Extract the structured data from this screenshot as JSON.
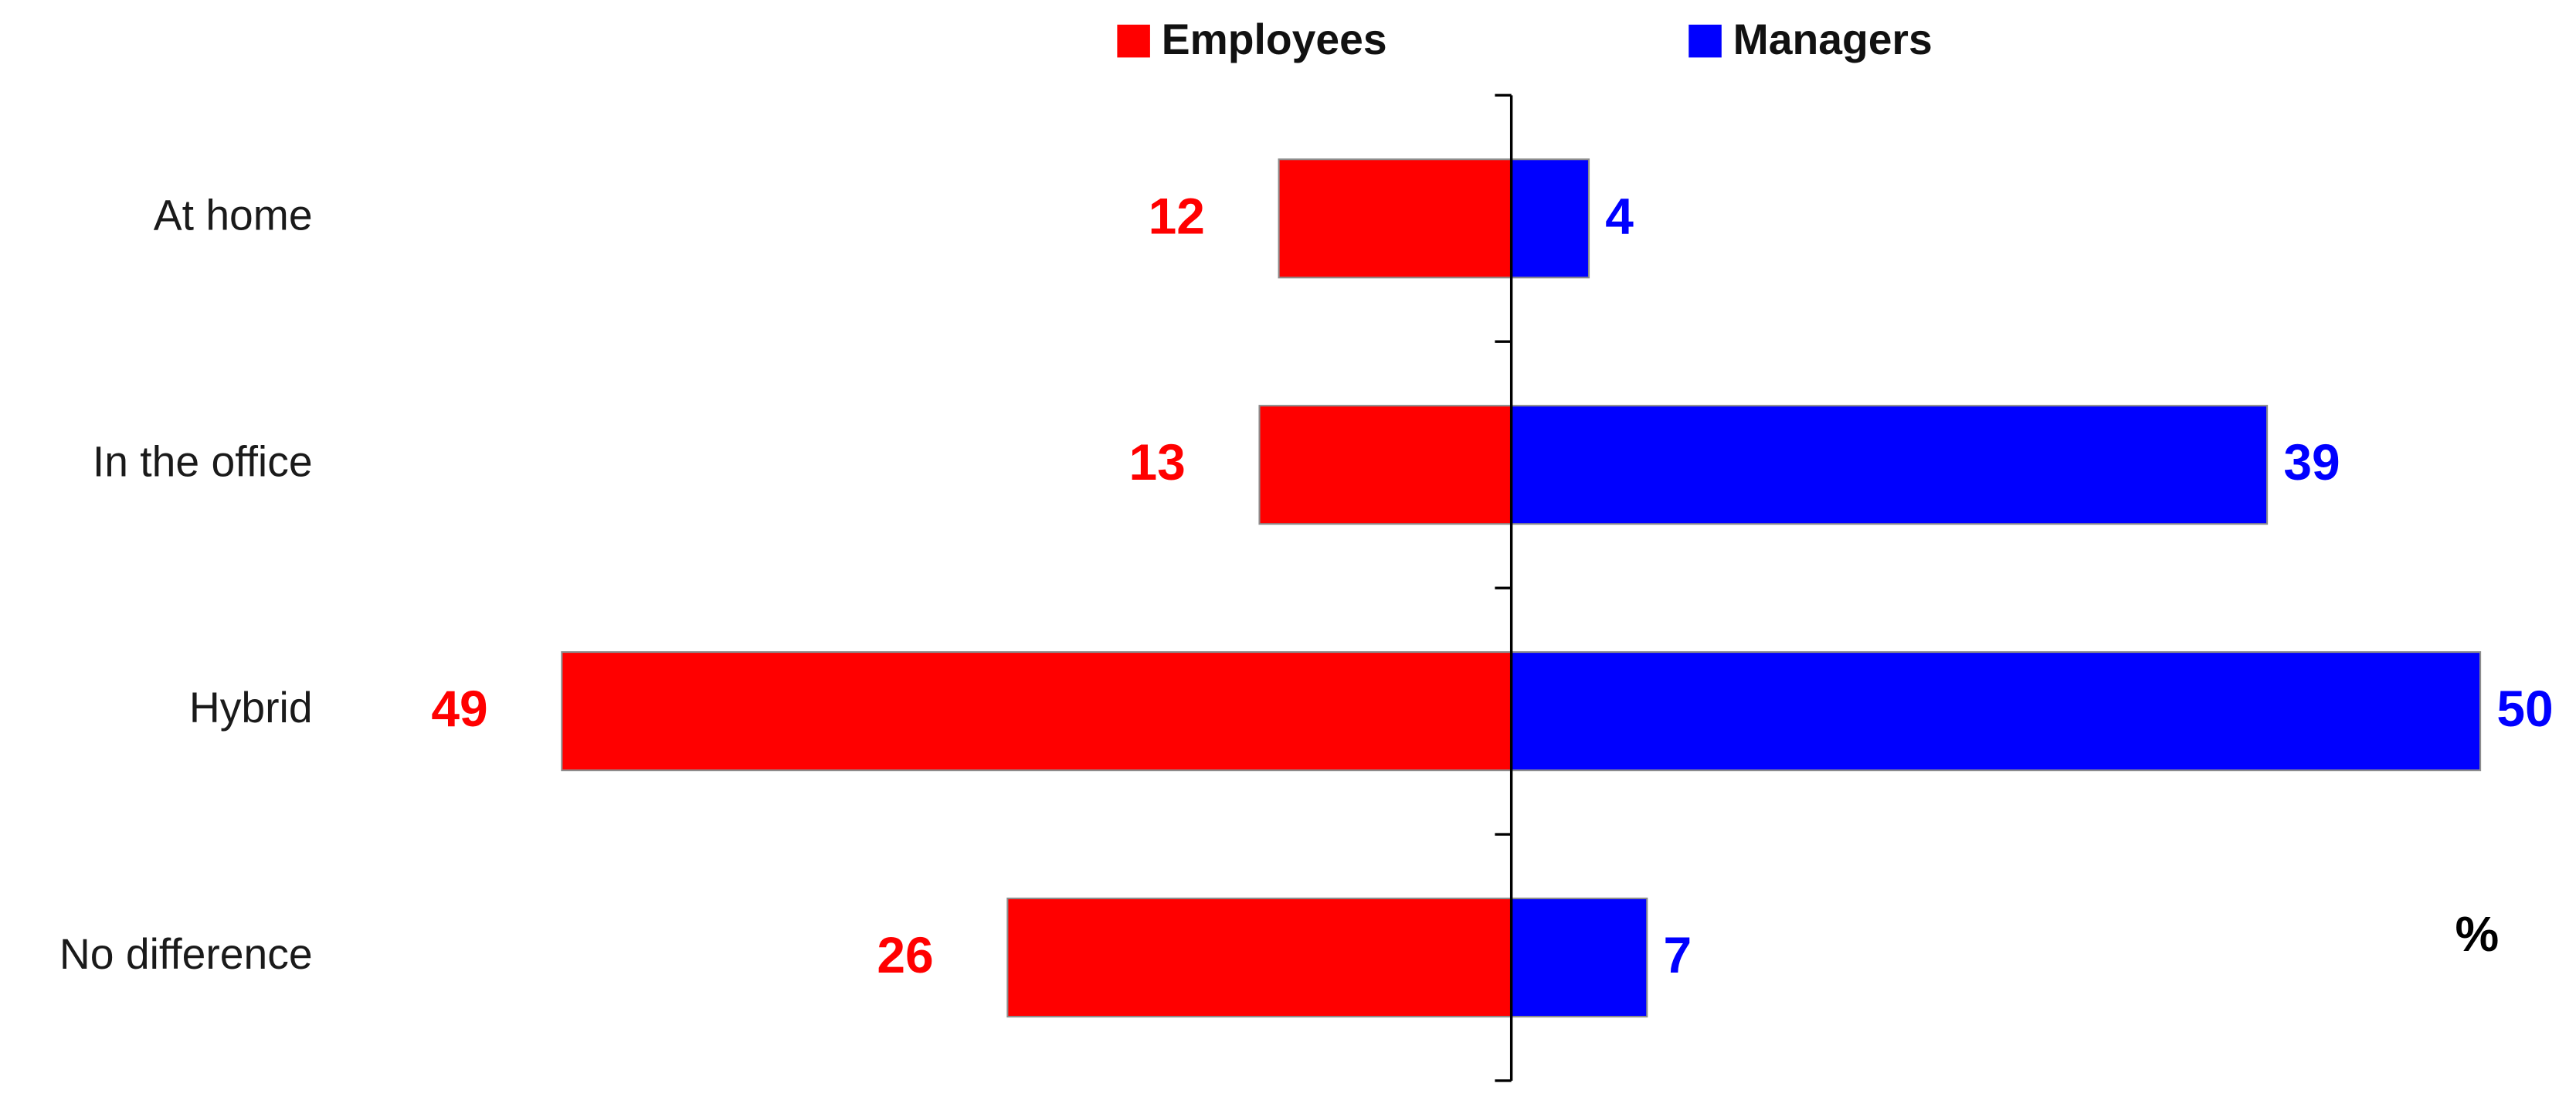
{
  "chart_data": {
    "type": "bar",
    "categories": [
      "At home",
      "In the office",
      "Hybrid",
      "No difference"
    ],
    "series": [
      {
        "name": "Employees",
        "color": "#ff0000",
        "values": [
          12,
          13,
          49,
          26
        ]
      },
      {
        "name": "Managers",
        "color": "#0000ff",
        "values": [
          4,
          39,
          50,
          7
        ]
      }
    ],
    "annotation": "%"
  }
}
